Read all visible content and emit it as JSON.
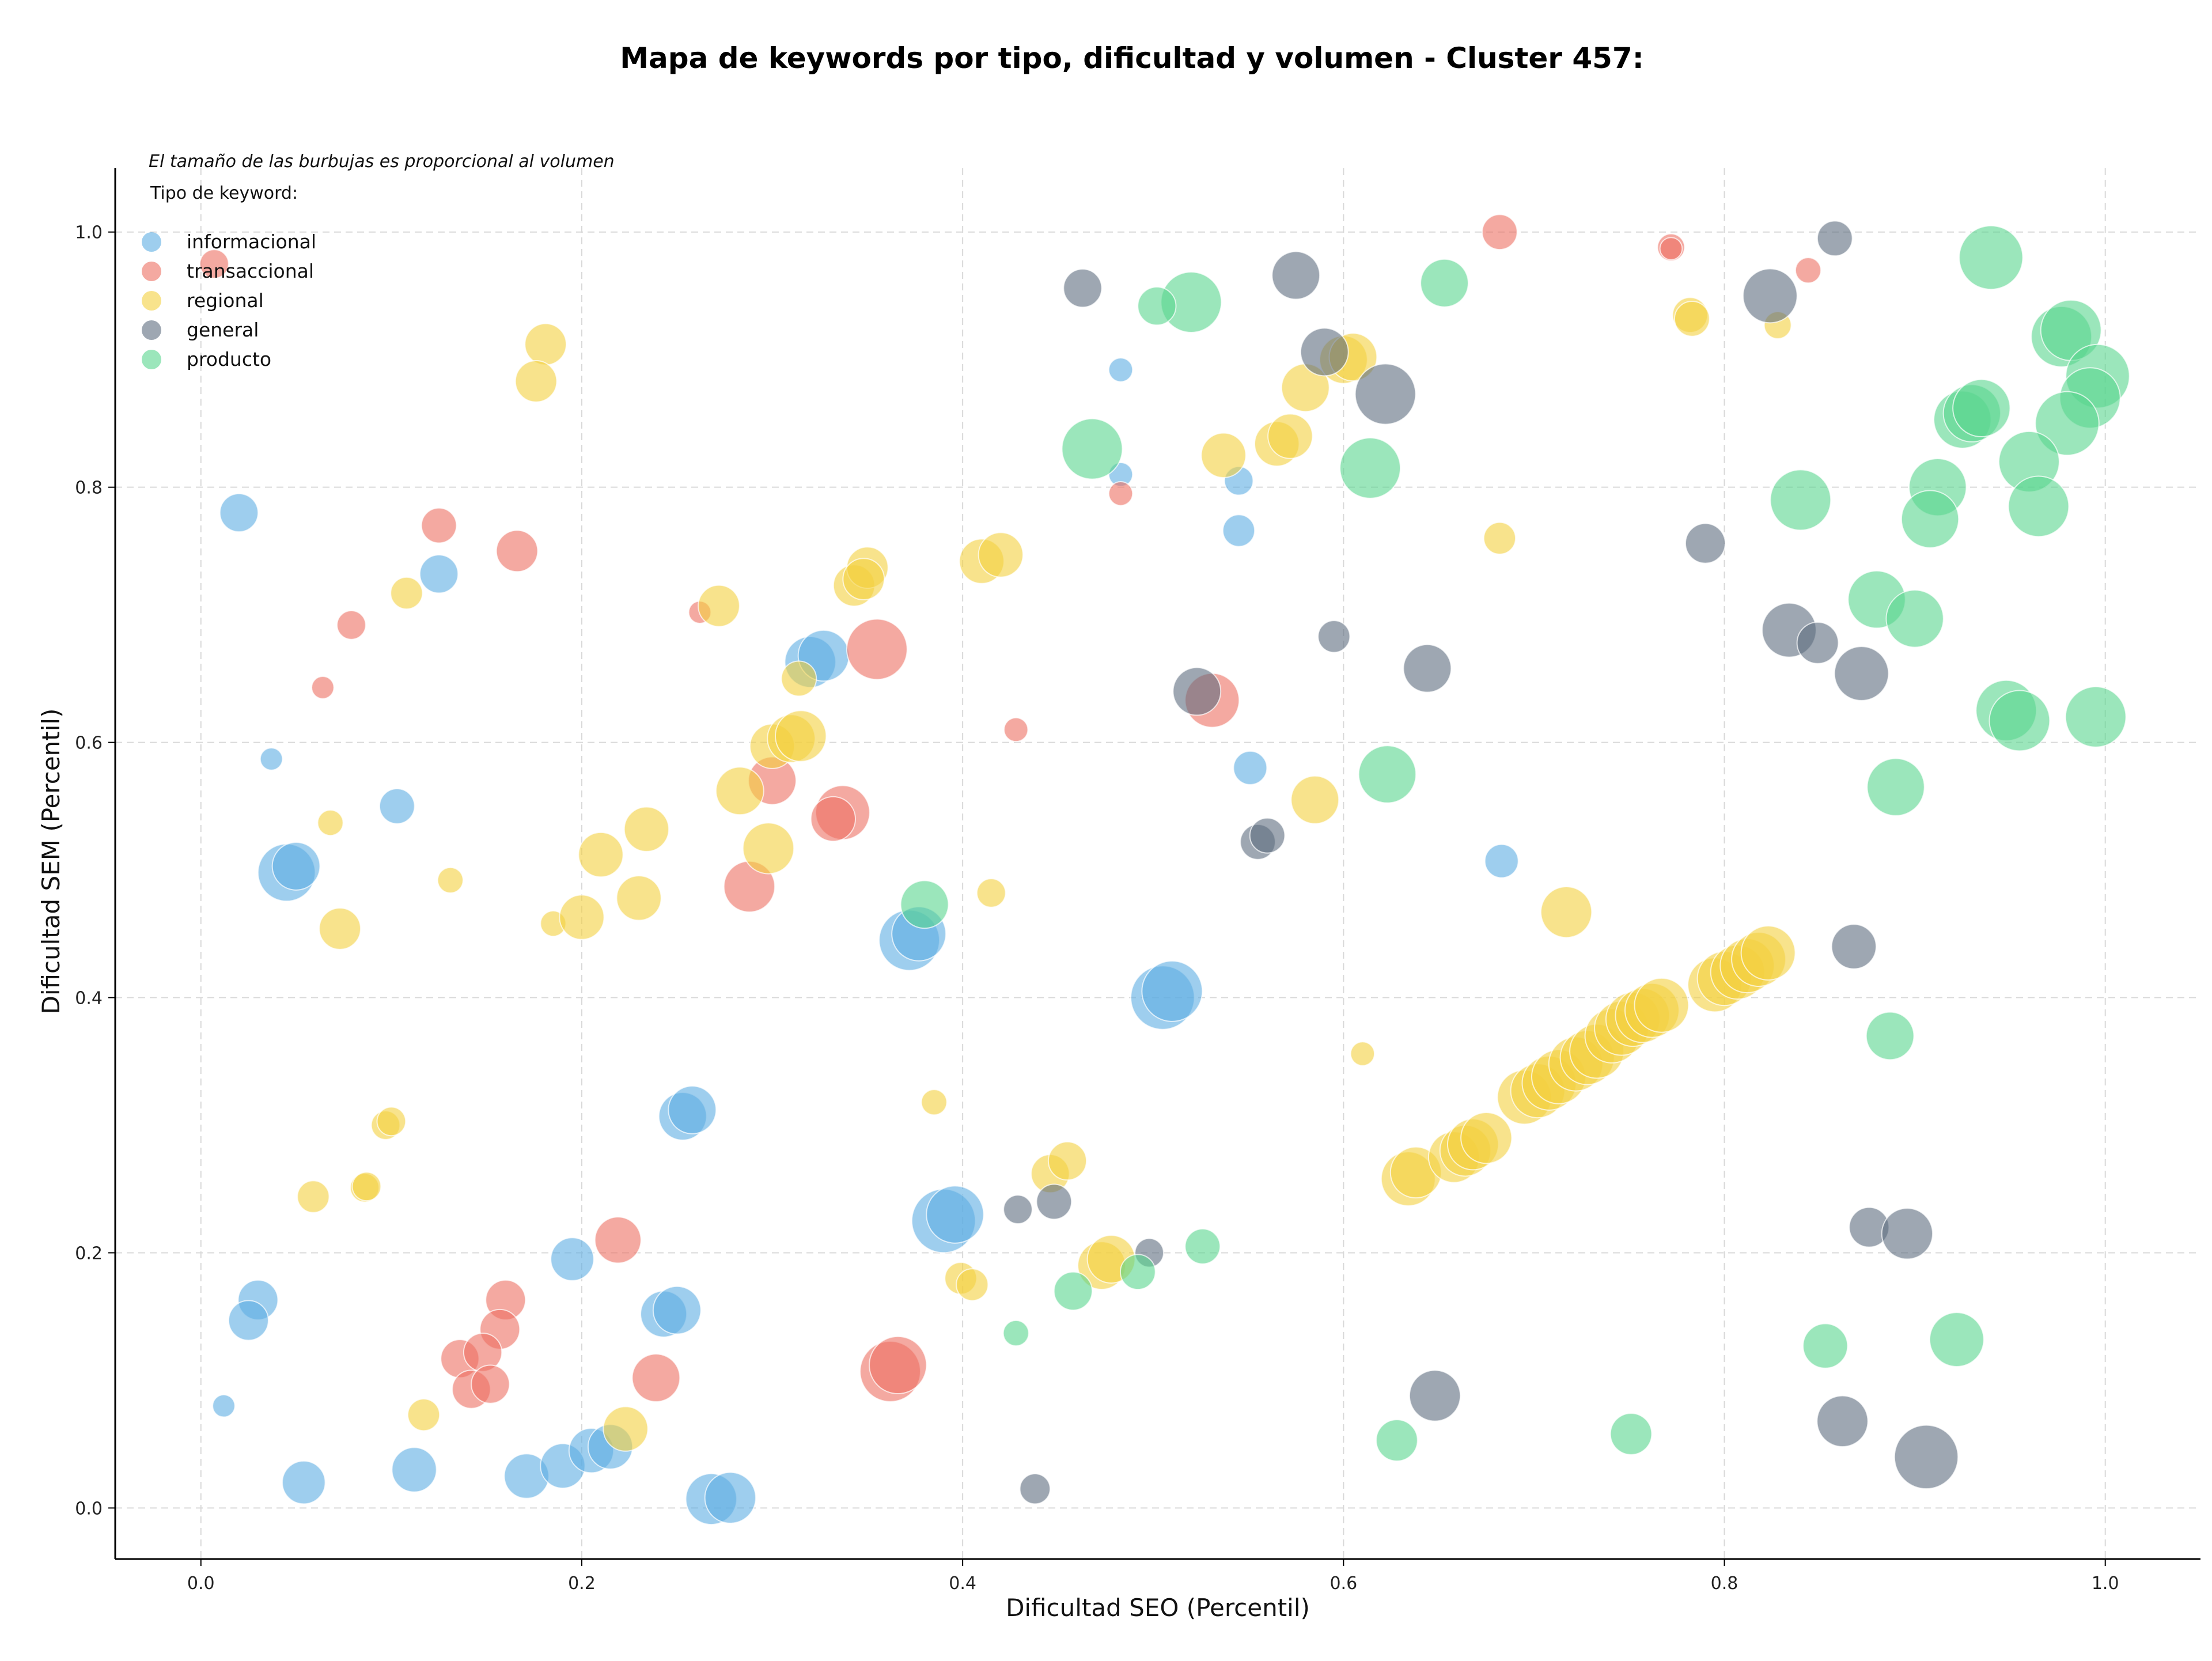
{
  "chart_data": {
    "type": "scatter",
    "title": "Mapa de keywords por tipo, dificultad y volumen - Cluster 457:",
    "xlabel": "Dificultad SEO (Percentil)",
    "ylabel": "Dificultad SEM (Percentil)",
    "xlim": [
      -0.045,
      1.05
    ],
    "ylim": [
      -0.04,
      1.05
    ],
    "xticks": [
      "0.0",
      "0.2",
      "0.4",
      "0.6",
      "0.8",
      "1.0"
    ],
    "yticks": [
      "0.0",
      "0.2",
      "0.4",
      "0.6",
      "0.8",
      "1.0"
    ],
    "grid": true,
    "note": "El tamaño de las burbujas es proporcional al volumen",
    "legend_title": "Tipo de keyword:",
    "legend_position": "top-left",
    "series": [
      {
        "name": "informacional",
        "color": "#5DADE2",
        "points": [
          [
            0.02,
            0.78,
            24
          ],
          [
            0.125,
            0.732,
            24
          ],
          [
            0.037,
            0.587,
            14
          ],
          [
            0.103,
            0.55,
            22
          ],
          [
            0.045,
            0.498,
            36
          ],
          [
            0.05,
            0.503,
            30
          ],
          [
            0.03,
            0.163,
            25
          ],
          [
            0.025,
            0.147,
            25
          ],
          [
            0.012,
            0.08,
            14
          ],
          [
            0.054,
            0.02,
            27
          ],
          [
            0.112,
            0.03,
            28
          ],
          [
            0.171,
            0.025,
            28
          ],
          [
            0.19,
            0.033,
            28
          ],
          [
            0.205,
            0.045,
            28
          ],
          [
            0.215,
            0.048,
            28
          ],
          [
            0.195,
            0.195,
            27
          ],
          [
            0.243,
            0.152,
            29
          ],
          [
            0.25,
            0.155,
            30
          ],
          [
            0.253,
            0.307,
            30
          ],
          [
            0.258,
            0.312,
            30
          ],
          [
            0.268,
            0.007,
            32
          ],
          [
            0.278,
            0.008,
            32
          ],
          [
            0.32,
            0.663,
            32
          ],
          [
            0.327,
            0.668,
            32
          ],
          [
            0.372,
            0.445,
            38
          ],
          [
            0.377,
            0.45,
            34
          ],
          [
            0.39,
            0.225,
            40
          ],
          [
            0.396,
            0.23,
            36
          ],
          [
            0.505,
            0.4,
            40
          ],
          [
            0.51,
            0.405,
            38
          ],
          [
            0.483,
            0.892,
            15
          ],
          [
            0.483,
            0.81,
            15
          ],
          [
            0.545,
            0.805,
            18
          ],
          [
            0.545,
            0.766,
            20
          ],
          [
            0.551,
            0.58,
            21
          ],
          [
            0.683,
            0.507,
            21
          ]
        ]
      },
      {
        "name": "transaccional",
        "color": "#EC7063",
        "points": [
          [
            0.007,
            0.975,
            18
          ],
          [
            0.125,
            0.77,
            22
          ],
          [
            0.166,
            0.75,
            26
          ],
          [
            0.079,
            0.692,
            18
          ],
          [
            0.064,
            0.643,
            14
          ],
          [
            0.262,
            0.702,
            14
          ],
          [
            0.355,
            0.673,
            38
          ],
          [
            0.3,
            0.57,
            30
          ],
          [
            0.337,
            0.545,
            34
          ],
          [
            0.332,
            0.54,
            28
          ],
          [
            0.288,
            0.487,
            32
          ],
          [
            0.219,
            0.21,
            29
          ],
          [
            0.16,
            0.163,
            25
          ],
          [
            0.157,
            0.14,
            25
          ],
          [
            0.136,
            0.117,
            24
          ],
          [
            0.148,
            0.122,
            24
          ],
          [
            0.142,
            0.093,
            24
          ],
          [
            0.152,
            0.097,
            24
          ],
          [
            0.239,
            0.102,
            30
          ],
          [
            0.362,
            0.107,
            38
          ],
          [
            0.366,
            0.112,
            36
          ],
          [
            0.428,
            0.61,
            15
          ],
          [
            0.531,
            0.633,
            34
          ],
          [
            0.483,
            0.795,
            15
          ],
          [
            0.682,
            1.0,
            22
          ],
          [
            0.772,
            0.988,
            17
          ],
          [
            0.772,
            0.987,
            14
          ],
          [
            0.844,
            0.97,
            16
          ]
        ]
      },
      {
        "name": "regional",
        "color": "#F4D03F",
        "points": [
          [
            0.181,
            0.912,
            26
          ],
          [
            0.176,
            0.883,
            26
          ],
          [
            0.108,
            0.717,
            20
          ],
          [
            0.068,
            0.537,
            16
          ],
          [
            0.131,
            0.492,
            16
          ],
          [
            0.073,
            0.454,
            26
          ],
          [
            0.185,
            0.458,
            16
          ],
          [
            0.2,
            0.463,
            28
          ],
          [
            0.21,
            0.512,
            28
          ],
          [
            0.23,
            0.478,
            28
          ],
          [
            0.234,
            0.532,
            28
          ],
          [
            0.272,
            0.707,
            26
          ],
          [
            0.283,
            0.562,
            30
          ],
          [
            0.298,
            0.517,
            32
          ],
          [
            0.3,
            0.597,
            28
          ],
          [
            0.31,
            0.603,
            30
          ],
          [
            0.315,
            0.605,
            32
          ],
          [
            0.314,
            0.65,
            22
          ],
          [
            0.343,
            0.723,
            26
          ],
          [
            0.35,
            0.737,
            26
          ],
          [
            0.348,
            0.728,
            26
          ],
          [
            0.41,
            0.742,
            28
          ],
          [
            0.42,
            0.747,
            28
          ],
          [
            0.415,
            0.482,
            18
          ],
          [
            0.385,
            0.318,
            16
          ],
          [
            0.399,
            0.18,
            20
          ],
          [
            0.405,
            0.175,
            20
          ],
          [
            0.446,
            0.262,
            24
          ],
          [
            0.455,
            0.272,
            24
          ],
          [
            0.473,
            0.19,
            30
          ],
          [
            0.478,
            0.195,
            30
          ],
          [
            0.223,
            0.062,
            28
          ],
          [
            0.117,
            0.073,
            20
          ],
          [
            0.097,
            0.3,
            18
          ],
          [
            0.1,
            0.303,
            18
          ],
          [
            0.059,
            0.244,
            20
          ],
          [
            0.086,
            0.251,
            18
          ],
          [
            0.087,
            0.252,
            18
          ],
          [
            0.537,
            0.825,
            28
          ],
          [
            0.565,
            0.834,
            28
          ],
          [
            0.572,
            0.84,
            28
          ],
          [
            0.58,
            0.878,
            30
          ],
          [
            0.6,
            0.9,
            30
          ],
          [
            0.605,
            0.902,
            30
          ],
          [
            0.585,
            0.555,
            30
          ],
          [
            0.61,
            0.356,
            15
          ],
          [
            0.682,
            0.76,
            20
          ],
          [
            0.717,
            0.467,
            32
          ],
          [
            0.782,
            0.935,
            22
          ],
          [
            0.783,
            0.932,
            22
          ],
          [
            0.828,
            0.927,
            17
          ],
          [
            0.634,
            0.258,
            34
          ],
          [
            0.638,
            0.263,
            32
          ],
          [
            0.658,
            0.275,
            32
          ],
          [
            0.664,
            0.28,
            32
          ],
          [
            0.668,
            0.285,
            32
          ],
          [
            0.675,
            0.29,
            32
          ],
          [
            0.695,
            0.322,
            34
          ],
          [
            0.702,
            0.327,
            34
          ],
          [
            0.708,
            0.333,
            34
          ],
          [
            0.713,
            0.338,
            34
          ],
          [
            0.722,
            0.348,
            34
          ],
          [
            0.728,
            0.353,
            34
          ],
          [
            0.733,
            0.358,
            34
          ],
          [
            0.741,
            0.37,
            34
          ],
          [
            0.746,
            0.376,
            34
          ],
          [
            0.752,
            0.383,
            34
          ],
          [
            0.757,
            0.386,
            34
          ],
          [
            0.762,
            0.39,
            34
          ],
          [
            0.767,
            0.394,
            34
          ],
          [
            0.795,
            0.41,
            34
          ],
          [
            0.8,
            0.415,
            34
          ],
          [
            0.807,
            0.42,
            34
          ],
          [
            0.812,
            0.425,
            34
          ],
          [
            0.818,
            0.43,
            34
          ],
          [
            0.823,
            0.435,
            34
          ]
        ]
      },
      {
        "name": "general",
        "color": "#5D6D7E",
        "points": [
          [
            0.463,
            0.956,
            24
          ],
          [
            0.575,
            0.966,
            30
          ],
          [
            0.59,
            0.906,
            30
          ],
          [
            0.622,
            0.873,
            38
          ],
          [
            0.595,
            0.683,
            20
          ],
          [
            0.523,
            0.64,
            30
          ],
          [
            0.555,
            0.522,
            22
          ],
          [
            0.56,
            0.527,
            22
          ],
          [
            0.644,
            0.658,
            30
          ],
          [
            0.429,
            0.234,
            18
          ],
          [
            0.448,
            0.24,
            22
          ],
          [
            0.498,
            0.2,
            18
          ],
          [
            0.438,
            0.015,
            19
          ],
          [
            0.648,
            0.088,
            32
          ],
          [
            0.79,
            0.756,
            25
          ],
          [
            0.824,
            0.95,
            34
          ],
          [
            0.858,
            0.995,
            22
          ],
          [
            0.834,
            0.688,
            34
          ],
          [
            0.849,
            0.678,
            26
          ],
          [
            0.872,
            0.654,
            34
          ],
          [
            0.868,
            0.44,
            28
          ],
          [
            0.876,
            0.22,
            25
          ],
          [
            0.896,
            0.215,
            32
          ],
          [
            0.862,
            0.068,
            32
          ],
          [
            0.906,
            0.04,
            40
          ]
        ]
      },
      {
        "name": "producto",
        "color": "#58D68D",
        "points": [
          [
            0.94,
            0.98,
            40
          ],
          [
            0.977,
            0.918,
            38
          ],
          [
            0.982,
            0.923,
            38
          ],
          [
            0.996,
            0.887,
            40
          ],
          [
            0.992,
            0.87,
            38
          ],
          [
            0.98,
            0.85,
            40
          ],
          [
            0.925,
            0.853,
            36
          ],
          [
            0.93,
            0.858,
            36
          ],
          [
            0.935,
            0.862,
            36
          ],
          [
            0.96,
            0.82,
            38
          ],
          [
            0.965,
            0.785,
            38
          ],
          [
            0.912,
            0.8,
            36
          ],
          [
            0.908,
            0.775,
            36
          ],
          [
            0.84,
            0.79,
            38
          ],
          [
            0.88,
            0.712,
            36
          ],
          [
            0.9,
            0.697,
            36
          ],
          [
            0.948,
            0.625,
            38
          ],
          [
            0.955,
            0.617,
            38
          ],
          [
            0.995,
            0.62,
            38
          ],
          [
            0.89,
            0.565,
            36
          ],
          [
            0.887,
            0.37,
            30
          ],
          [
            0.853,
            0.127,
            28
          ],
          [
            0.922,
            0.132,
            34
          ],
          [
            0.751,
            0.058,
            26
          ],
          [
            0.628,
            0.053,
            26
          ],
          [
            0.653,
            0.96,
            30
          ],
          [
            0.614,
            0.815,
            38
          ],
          [
            0.623,
            0.575,
            36
          ],
          [
            0.468,
            0.83,
            38
          ],
          [
            0.52,
            0.945,
            38
          ],
          [
            0.502,
            0.942,
            24
          ],
          [
            0.38,
            0.473,
            30
          ],
          [
            0.526,
            0.205,
            22
          ],
          [
            0.458,
            0.17,
            24
          ],
          [
            0.492,
            0.185,
            22
          ],
          [
            0.428,
            0.137,
            16
          ]
        ]
      }
    ]
  }
}
